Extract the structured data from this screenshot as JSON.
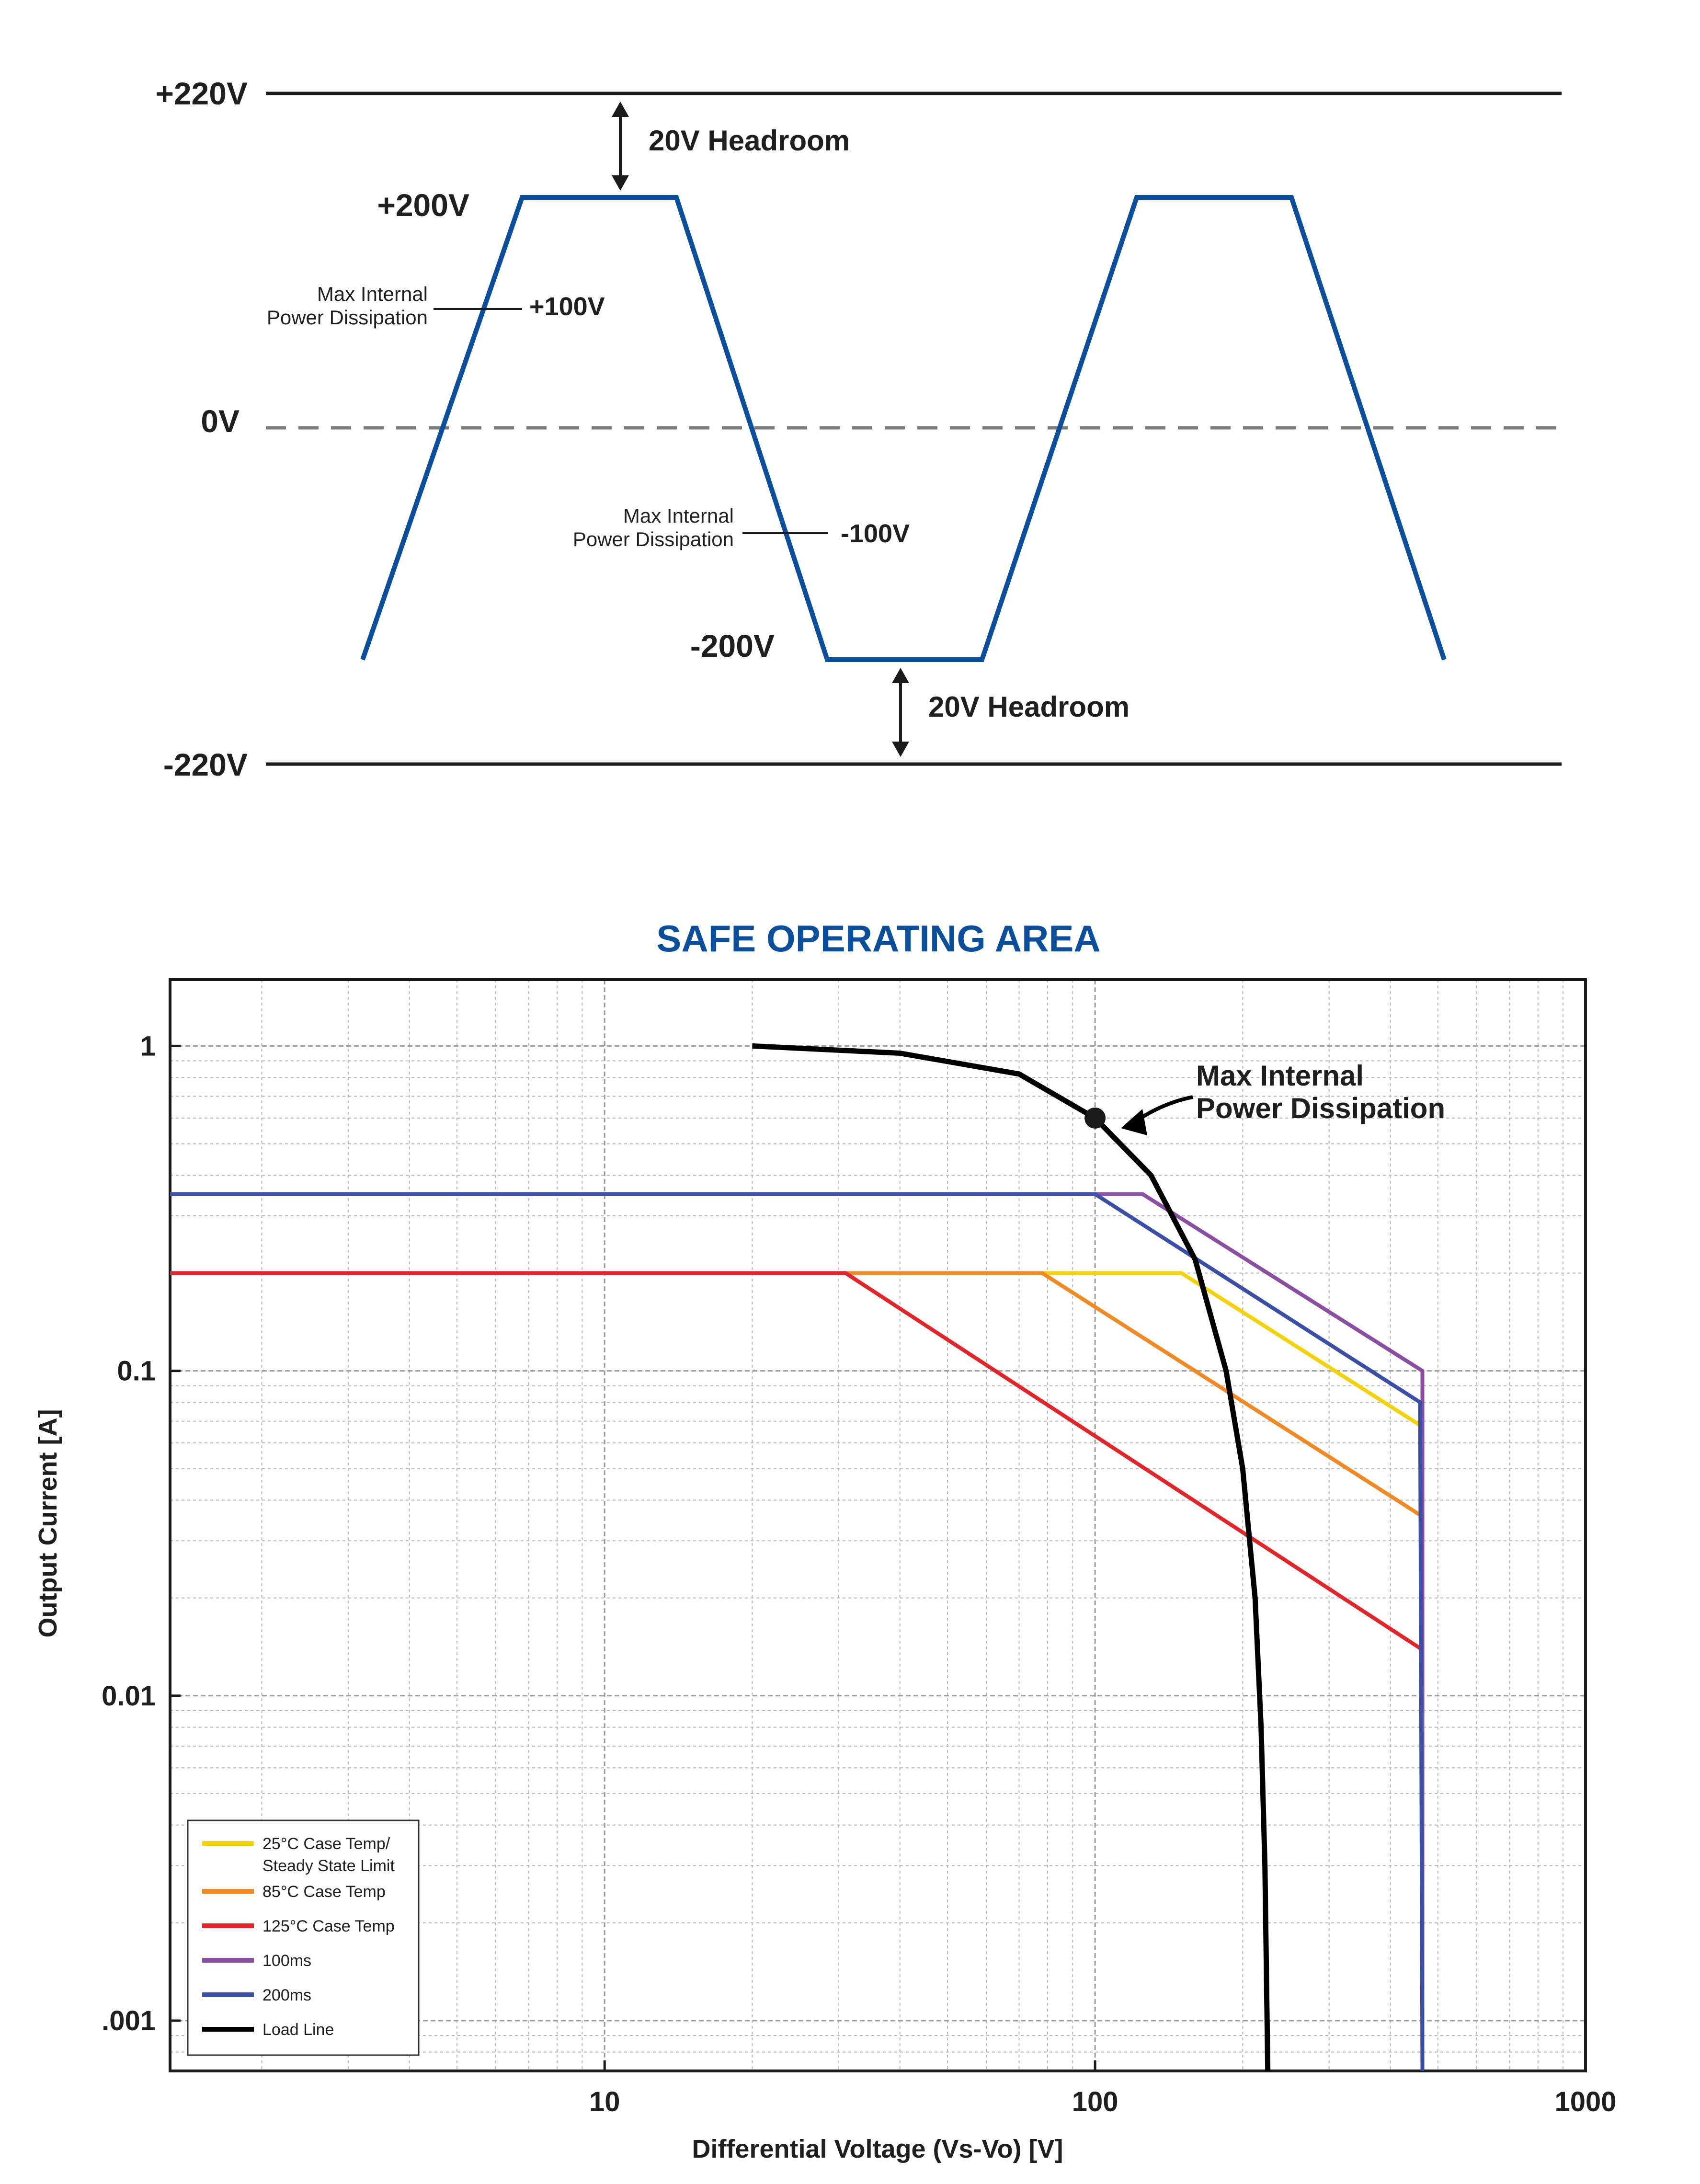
{
  "waveform": {
    "levels": [
      {
        "key": "plus220",
        "label": "+220V"
      },
      {
        "key": "plus200",
        "label": "+200V"
      },
      {
        "key": "plus100",
        "label": "+100V"
      },
      {
        "key": "zero",
        "label": "0V"
      },
      {
        "key": "minus100",
        "label": "-100V"
      },
      {
        "key": "minus200",
        "label": "-200V"
      },
      {
        "key": "minus220",
        "label": "-220V"
      }
    ],
    "headroom_top_label": "20V Headroom",
    "headroom_bottom_label": "20V Headroom",
    "max_dissipation_top_label": [
      "Max Internal",
      "Power Dissipation"
    ],
    "max_dissipation_bottom_label": [
      "Max Internal",
      "Power Dissipation"
    ],
    "colors": {
      "wave": "#0b4f9c",
      "rail": "#1a1a1a",
      "zero_line": "#7a7a7a"
    }
  },
  "chart_data": {
    "type": "line",
    "title": "SAFE OPERATING AREA",
    "xlabel": "Differential Voltage (Vs-Vo) [V]",
    "ylabel": "Output Current [A]",
    "x_scale": "log",
    "y_scale": "log",
    "xlim": [
      1.3,
      1000
    ],
    "ylim": [
      0.0007,
      1.6
    ],
    "x_ticks": [
      {
        "value": 10,
        "label": "10"
      },
      {
        "value": 100,
        "label": "100"
      },
      {
        "value": 1000,
        "label": "1000"
      }
    ],
    "y_ticks": [
      {
        "value": 1,
        "label": "1"
      },
      {
        "value": 0.1,
        "label": "0.1"
      },
      {
        "value": 0.01,
        "label": "0.01"
      },
      {
        "value": 0.001,
        "label": ".001"
      }
    ],
    "grid": true,
    "legend_position": "bottom-left",
    "title_color": "#0b4f9c",
    "series": [
      {
        "name": "25°C Case Temp/ Steady State Limit",
        "legend_lines": [
          "25°C Case Temp/",
          "Steady State Limit"
        ],
        "color": "#f4d20b",
        "points": [
          [
            1.3,
            0.2
          ],
          [
            150,
            0.2
          ],
          [
            460,
            0.068
          ]
        ]
      },
      {
        "name": "85°C Case Temp",
        "legend_lines": [
          "85°C Case Temp"
        ],
        "color": "#f08a24",
        "points": [
          [
            1.3,
            0.2
          ],
          [
            78,
            0.2
          ],
          [
            460,
            0.036
          ]
        ]
      },
      {
        "name": "125°C Case Temp",
        "legend_lines": [
          "125°C Case Temp"
        ],
        "color": "#e0262b",
        "points": [
          [
            1.3,
            0.2
          ],
          [
            31,
            0.2
          ],
          [
            460,
            0.014
          ]
        ]
      },
      {
        "name": "100ms",
        "legend_lines": [
          "100ms"
        ],
        "color": "#8b4fa2",
        "points": [
          [
            1.3,
            0.35
          ],
          [
            125,
            0.35
          ],
          [
            465,
            0.1
          ],
          [
            465,
            0.0007
          ]
        ]
      },
      {
        "name": "200ms",
        "legend_lines": [
          "200ms"
        ],
        "color": "#3a4fa5",
        "points": [
          [
            1.3,
            0.35
          ],
          [
            100,
            0.35
          ],
          [
            460,
            0.08
          ],
          [
            465,
            0.0007
          ]
        ]
      },
      {
        "name": "Load Line",
        "legend_lines": [
          "Load Line"
        ],
        "color": "#000000",
        "points": [
          [
            20,
            1.0
          ],
          [
            40,
            0.95
          ],
          [
            70,
            0.82
          ],
          [
            100,
            0.6
          ],
          [
            130,
            0.4
          ],
          [
            160,
            0.22
          ],
          [
            185,
            0.1
          ],
          [
            200,
            0.05
          ],
          [
            212,
            0.02
          ],
          [
            218,
            0.008
          ],
          [
            222,
            0.003
          ],
          [
            225,
            0.0007
          ]
        ]
      }
    ],
    "annotations": [
      {
        "text": [
          "Max Internal",
          "Power Dissipation"
        ],
        "x": 100,
        "y": 0.6
      }
    ]
  }
}
